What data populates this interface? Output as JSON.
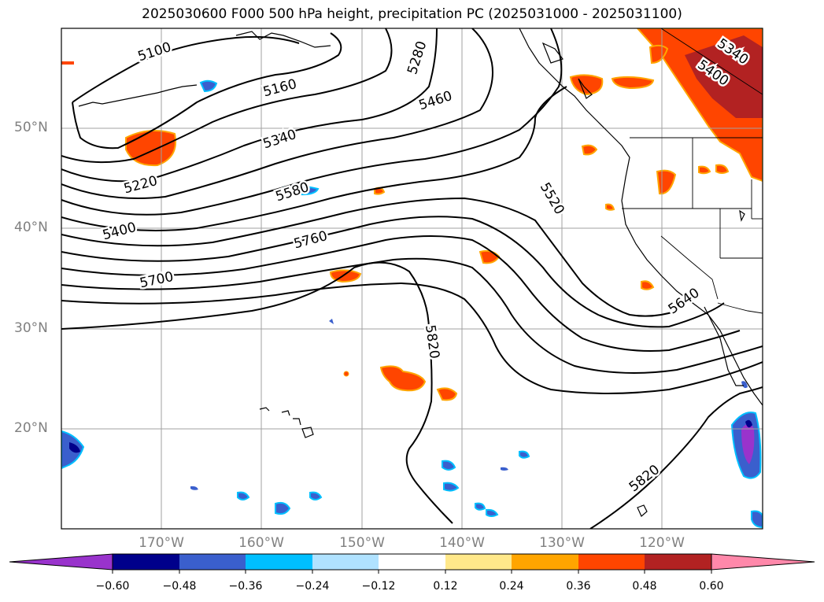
{
  "title": "2025030600 F000 500 hPa height, precipitation PC (2025031000 - 2025031100)",
  "lat_ticks": [
    "50°N",
    "40°N",
    "30°N",
    "20°N"
  ],
  "lon_ticks": [
    "170°W",
    "160°W",
    "150°W",
    "140°W",
    "130°W",
    "120°W"
  ],
  "contour_labels": [
    "5100",
    "5160",
    "5220",
    "5280",
    "5340",
    "5340",
    "5400",
    "5400",
    "5460",
    "5520",
    "5580",
    "5640",
    "5700",
    "5760",
    "5820",
    "5820"
  ],
  "colorbar": {
    "ticks": [
      "−0.60",
      "−0.48",
      "−0.36",
      "−0.24",
      "−0.12",
      "0.12",
      "0.24",
      "0.36",
      "0.48",
      "0.60"
    ],
    "colors": [
      "#9933cc",
      "#00008b",
      "#3a5fcd",
      "#00bfff",
      "#b0e2ff",
      "#ffffff",
      "#ffe88a",
      "#ffa500",
      "#ff4500",
      "#b22222",
      "#ff88aa"
    ]
  },
  "colors": {
    "frame": "#000000",
    "grid": "#a0a0a0",
    "contour": "#000000",
    "tick_label": "#808080"
  }
}
